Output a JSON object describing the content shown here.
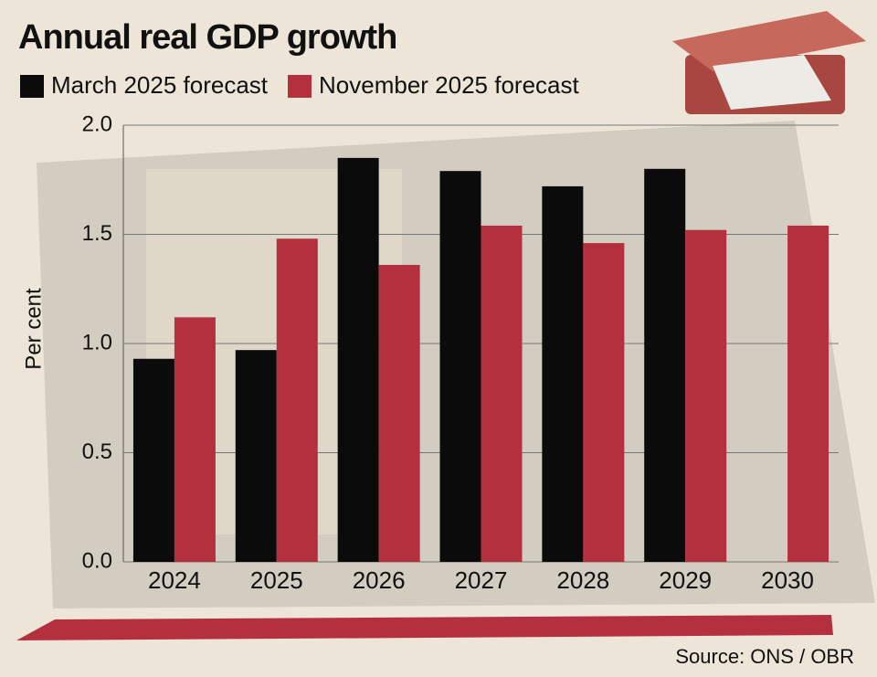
{
  "chart_data": {
    "type": "bar",
    "title": "Annual real GDP growth",
    "y_label": "Per cent",
    "source": "Source: ONS / OBR",
    "categories": [
      "2024",
      "2025",
      "2026",
      "2027",
      "2028",
      "2029",
      "2030"
    ],
    "series": [
      {
        "name": "March 2025 forecast",
        "color": "#0b0b0b",
        "values": [
          0.93,
          0.97,
          1.85,
          1.79,
          1.72,
          1.8,
          null
        ]
      },
      {
        "name": "November 2025 forecast",
        "color": "#b5303f",
        "values": [
          1.12,
          1.48,
          1.36,
          1.54,
          1.46,
          1.52,
          1.54
        ]
      }
    ],
    "ylim": [
      0,
      2.0
    ],
    "yticks": [
      {
        "value": 0,
        "label": "0.0"
      },
      0.5,
      {
        "value": 1.0,
        "label": "1.0"
      },
      1.5,
      {
        "value": 2.0,
        "label": "2.0"
      }
    ],
    "grid": true
  }
}
